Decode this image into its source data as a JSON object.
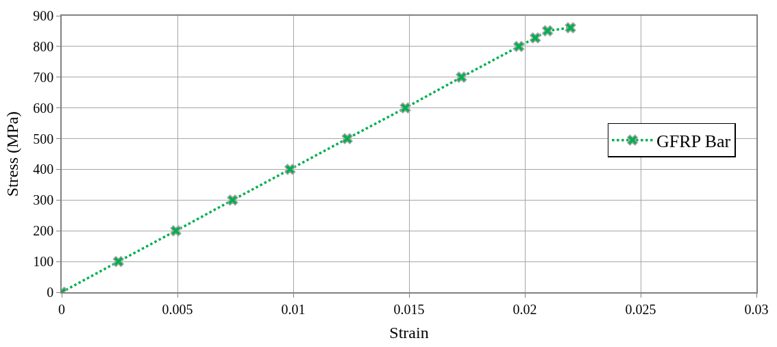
{
  "chart_data": {
    "type": "line",
    "xlabel": "Strain",
    "ylabel": "Stress (MPa)",
    "series": [
      {
        "name": "GFRP Bar",
        "color": "#00b050",
        "x": [
          0,
          0.00245,
          0.00493,
          0.00738,
          0.00986,
          0.01233,
          0.01484,
          0.01726,
          0.01974,
          0.02045,
          0.02098,
          0.02197
        ],
        "values": [
          0,
          100,
          200,
          300,
          400,
          500,
          600,
          700,
          800,
          828,
          851,
          861
        ]
      }
    ],
    "xlim": [
      0,
      0.03
    ],
    "xticks": [
      0,
      0.005,
      0.01,
      0.015,
      0.02,
      0.025,
      0.03
    ],
    "ylim": [
      0,
      900
    ],
    "yticks": [
      0,
      100,
      200,
      300,
      400,
      500,
      600,
      700,
      800,
      900
    ],
    "grid": true,
    "legend": "right",
    "marker": "cross",
    "line_style": "dotted"
  }
}
